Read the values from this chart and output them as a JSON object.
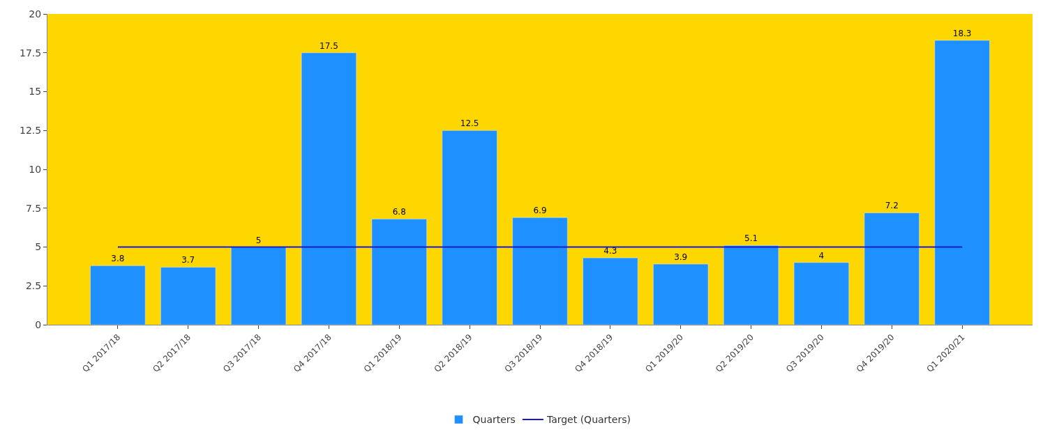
{
  "chart_data": {
    "type": "bar",
    "categories": [
      "Q1 2017/18",
      "Q2 2017/18",
      "Q3 2017/18",
      "Q4 2017/18",
      "Q1 2018/19",
      "Q2 2018/19",
      "Q3 2018/19",
      "Q4 2018/19",
      "Q1 2019/20",
      "Q2 2019/20",
      "Q3 2019/20",
      "Q4 2019/20",
      "Q1 2020/21"
    ],
    "series": [
      {
        "name": "Quarters",
        "color": "#1e90ff",
        "values": [
          3.8,
          3.7,
          5,
          17.5,
          6.8,
          12.5,
          6.9,
          4.3,
          3.9,
          5.1,
          4,
          7.2,
          18.3
        ],
        "value_labels": [
          "3.8",
          "3.7",
          "5",
          "17.5",
          "6.8",
          "12.5",
          "6.9",
          "4.3",
          "3.9",
          "5.1",
          "4",
          "7.2",
          "18.3"
        ]
      },
      {
        "name": "Target (Quarters)",
        "type": "line",
        "color": "#1a1acc",
        "values": [
          5,
          5,
          5,
          5,
          5,
          5,
          5,
          5,
          5,
          5,
          5,
          5,
          5
        ]
      }
    ],
    "ylim": [
      0,
      20
    ],
    "yticks": [
      0,
      2.5,
      5,
      7.5,
      10,
      12.5,
      15,
      17.5,
      20
    ],
    "grid": false,
    "legend": "bottom",
    "marker": "none",
    "line_style": "solid"
  }
}
